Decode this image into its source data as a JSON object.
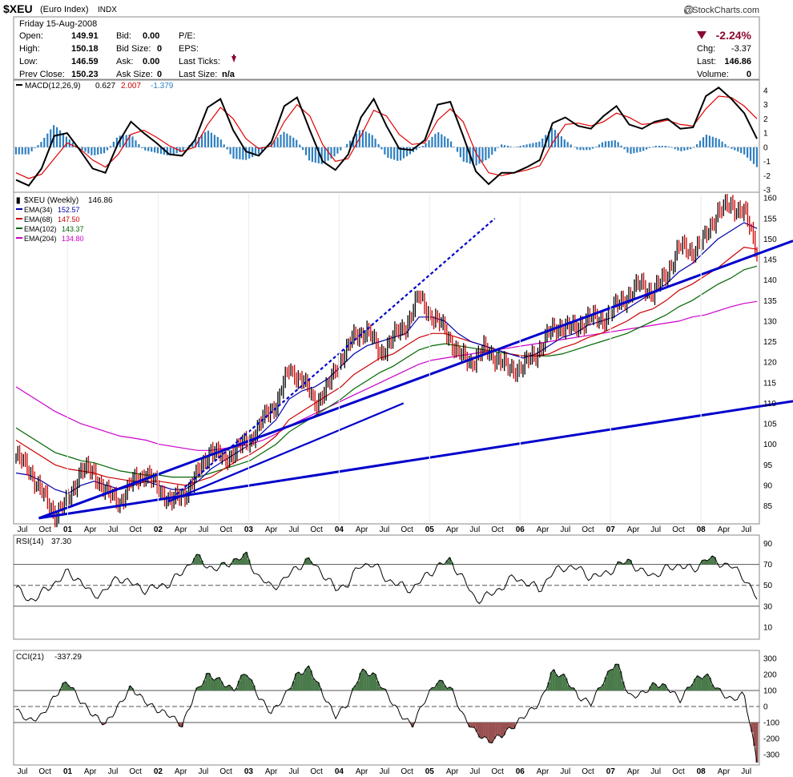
{
  "header": {
    "symbol": "$XEU",
    "name": "(Euro Index)",
    "exchange": "INDX",
    "copyright": "@StockCharts.com",
    "date": "Friday  15-Aug-2008",
    "open_label": "Open:",
    "open": "149.91",
    "high_label": "High:",
    "high": "150.18",
    "low_label": "Low:",
    "low": "146.59",
    "prev_label": "Prev Close:",
    "prev": "150.23",
    "bid_label": "Bid:",
    "bid": "0.00",
    "bidsize_label": "Bid Size:",
    "bidsize": "0",
    "ask_label": "Ask:",
    "ask": "0.00",
    "asksize_label": "Ask Size:",
    "asksize": "0",
    "pe_label": "P/E:",
    "eps_label": "EPS:",
    "lastticks_label": "Last Ticks:",
    "lastsize_label": "Last Size:",
    "lastsize": "n/a",
    "pct_change": "-2.24%",
    "chg_label": "Chg:",
    "chg": "-3.37",
    "last_label": "Last:",
    "last": "146.86",
    "volume_label": "Volume:",
    "volume": "0"
  },
  "colors": {
    "ema34": "#0000aa",
    "ema68": "#cc0000",
    "ema102": "#006600",
    "ema204": "#cc00cc",
    "trend": "#0000cc",
    "hist": "#2f7fc0",
    "up": "#000000",
    "down": "#cc0000",
    "bullFill": "#4a7a4a",
    "bearFill": "#9a5050"
  },
  "chart_data": [
    {
      "type": "line",
      "name": "MACD",
      "legend": {
        "label": "MACD(12,26,9)",
        "v1": "0.627",
        "v2": "2.007",
        "v3": "-1.379"
      },
      "ylim": [
        -3,
        4.5
      ],
      "yticks": [
        4,
        3,
        2,
        1,
        0,
        -1,
        -2,
        -3
      ],
      "series": [
        {
          "values": [
            -2.3,
            -2.7,
            -1.5,
            0.8,
            1.0,
            -0.2,
            -1.5,
            -1.8,
            0.3,
            1.8,
            1.0,
            0.3,
            -0.5,
            -0.6,
            0.5,
            2.8,
            3.4,
            1.2,
            -0.3,
            -0.6,
            0.4,
            2.9,
            3.5,
            1.2,
            -1.0,
            -1.6,
            -0.5,
            2.1,
            3.4,
            1.5,
            -0.1,
            -0.2,
            0.5,
            3.0,
            3.2,
            0.8,
            -1.7,
            -2.6,
            -1.8,
            -1.8,
            -1.4,
            -0.9,
            1.7,
            2.1,
            1.5,
            1.3,
            2.2,
            2.9,
            1.6,
            1.3,
            1.8,
            2.0,
            1.3,
            1.4,
            3.6,
            4.2,
            3.4,
            2.4,
            0.6
          ]
        },
        {
          "values": [
            -1.8,
            -2.2,
            -1.9,
            -0.8,
            0.3,
            -0.1,
            -0.9,
            -1.4,
            -0.5,
            0.9,
            1.2,
            0.7,
            0.1,
            -0.3,
            0.0,
            1.6,
            2.8,
            2.0,
            0.6,
            -0.1,
            0.1,
            1.8,
            3.0,
            2.2,
            0.2,
            -1.0,
            -0.8,
            0.8,
            2.6,
            2.2,
            0.9,
            0.2,
            0.3,
            1.9,
            2.7,
            1.8,
            -0.4,
            -1.8,
            -2.0,
            -1.8,
            -1.6,
            -1.3,
            0.3,
            1.6,
            1.7,
            1.5,
            1.8,
            2.4,
            2.1,
            1.6,
            1.7,
            1.9,
            1.6,
            1.5,
            2.7,
            3.6,
            3.5,
            2.9,
            2.0
          ]
        },
        {
          "values": [
            -0.5,
            -0.5,
            0.4,
            1.6,
            0.7,
            -0.1,
            -0.6,
            -0.4,
            0.8,
            0.9,
            -0.2,
            -0.4,
            -0.6,
            -0.3,
            0.5,
            1.2,
            0.6,
            -0.8,
            -0.9,
            -0.5,
            0.3,
            1.1,
            0.5,
            -1.0,
            -1.2,
            -0.6,
            0.3,
            1.3,
            0.8,
            -0.7,
            -1.0,
            -0.4,
            0.2,
            1.1,
            0.5,
            -1.0,
            -1.3,
            -0.8,
            0.2,
            0.0,
            0.2,
            0.4,
            1.4,
            0.5,
            -0.2,
            -0.2,
            0.4,
            0.5,
            -0.5,
            -0.3,
            0.1,
            0.1,
            -0.3,
            -0.1,
            0.9,
            0.6,
            -0.1,
            -0.5,
            -1.4
          ]
        }
      ]
    },
    {
      "type": "line",
      "name": "$XEU Weekly",
      "legend": {
        "label": "$XEU (Weekly)",
        "value": "146.86"
      },
      "ema": [
        {
          "label": "EMA(34)",
          "value": "152.57"
        },
        {
          "label": "EMA(68)",
          "value": "147.50"
        },
        {
          "label": "EMA(102)",
          "value": "143.37"
        },
        {
          "label": "EMA(204)",
          "value": "134.80"
        }
      ],
      "ylim": [
        81,
        161
      ],
      "yticks": [
        160,
        155,
        150,
        145,
        140,
        135,
        130,
        125,
        120,
        115,
        110,
        105,
        100,
        95,
        90,
        85
      ],
      "x_labels": [
        "Jul",
        "Oct",
        "01",
        "Apr",
        "Jul",
        "Oct",
        "02",
        "Apr",
        "Jul",
        "Oct",
        "03",
        "Apr",
        "Jul",
        "Oct",
        "04",
        "Apr",
        "Jul",
        "Oct",
        "05",
        "Apr",
        "Jul",
        "Oct",
        "06",
        "Apr",
        "Jul",
        "Oct",
        "07",
        "Apr",
        "Jul",
        "Oct",
        "08",
        "Apr",
        "Jul"
      ],
      "price": [
        97,
        94,
        88,
        83,
        86,
        94,
        93,
        88,
        86,
        91,
        93,
        89,
        86,
        88,
        93,
        99,
        96,
        99,
        101,
        106,
        110,
        118,
        116,
        110,
        114,
        121,
        126,
        128,
        122,
        126,
        129,
        136,
        131,
        128,
        122,
        120,
        123,
        121,
        118,
        119,
        122,
        127,
        129,
        128,
        131,
        130,
        133,
        136,
        139,
        137,
        141,
        148,
        147,
        150,
        157,
        158,
        157,
        146.86
      ],
      "ema34": [
        93,
        92.5,
        91,
        89,
        88,
        90,
        91,
        90,
        89,
        90,
        91,
        90,
        89,
        89,
        91,
        94,
        96,
        98,
        100,
        103,
        106,
        111,
        113,
        114,
        116,
        119,
        122,
        124,
        125,
        126,
        127,
        131,
        131,
        130,
        127,
        125,
        124,
        123,
        122,
        121,
        122,
        124,
        126,
        127,
        129,
        130,
        131,
        133,
        135,
        137,
        139,
        142,
        144,
        147,
        150,
        152,
        154,
        152.57
      ],
      "ema68": [
        101,
        99,
        97,
        95,
        94,
        93.5,
        93,
        92,
        91.5,
        91,
        91,
        91,
        90.5,
        90,
        91,
        92,
        94,
        96,
        97.5,
        99.5,
        102,
        106,
        108,
        110,
        112,
        114,
        117,
        119,
        121,
        122,
        124,
        126,
        127,
        127,
        126,
        125,
        124,
        123,
        122,
        121.5,
        121.5,
        122,
        123.5,
        124.5,
        126,
        127,
        128.5,
        130,
        132,
        133,
        135,
        137.5,
        139,
        141,
        143,
        145.5,
        148,
        147.5
      ],
      "ema102": [
        104,
        102,
        100,
        98,
        97,
        96,
        95.5,
        94.5,
        93.5,
        93,
        92.5,
        92.5,
        92,
        92,
        92,
        93,
        94,
        95,
        96,
        98,
        100,
        103,
        105,
        107,
        109,
        111,
        113.5,
        115.5,
        117.5,
        119,
        121,
        123,
        124,
        124.5,
        124,
        123.5,
        123,
        122.5,
        122,
        121.5,
        121.5,
        121.5,
        122,
        123,
        124,
        125,
        126,
        127,
        128.5,
        130,
        131.5,
        133.5,
        135,
        137,
        139,
        140.5,
        142.5,
        143.4
      ],
      "ema204": [
        114,
        112,
        110,
        108,
        106.5,
        105,
        104,
        103,
        102,
        101.5,
        101,
        100,
        99.5,
        99,
        98.5,
        98.5,
        99,
        99.5,
        100,
        101,
        102.5,
        104.5,
        106,
        107.5,
        109,
        110.5,
        112,
        113.5,
        115,
        116.5,
        118,
        119.5,
        120.5,
        121,
        121.5,
        122,
        122.5,
        123,
        123.5,
        124,
        124.5,
        125,
        125.5,
        126,
        126.5,
        127,
        127.5,
        128,
        128.5,
        129,
        129.5,
        130,
        131,
        131.5,
        132.5,
        133.5,
        134.3,
        134.8
      ]
    },
    {
      "type": "line",
      "name": "RSI",
      "legend": {
        "label": "RSI(14)",
        "value": "37.30"
      },
      "ylim": [
        0,
        95
      ],
      "yticks": [
        90,
        70,
        50,
        30,
        10
      ],
      "values": [
        48,
        35,
        42,
        52,
        62,
        55,
        40,
        45,
        58,
        52,
        46,
        48,
        52,
        62,
        78,
        68,
        66,
        74,
        78,
        58,
        48,
        55,
        68,
        74,
        62,
        46,
        52,
        70,
        70,
        56,
        50,
        46,
        58,
        68,
        74,
        56,
        36,
        40,
        48,
        58,
        52,
        46,
        62,
        68,
        66,
        58,
        60,
        68,
        74,
        62,
        60,
        66,
        70,
        64,
        76,
        72,
        68,
        58,
        37
      ]
    },
    {
      "type": "line",
      "name": "CCI",
      "legend": {
        "label": "CCI(21)",
        "value": "-337.29"
      },
      "ylim": [
        -350,
        350
      ],
      "yticks": [
        300,
        200,
        100,
        0,
        -100,
        -200,
        -300
      ],
      "values": [
        -20,
        -90,
        -60,
        60,
        160,
        40,
        -50,
        -110,
        0,
        120,
        40,
        -20,
        -50,
        -120,
        80,
        200,
        160,
        100,
        220,
        60,
        -40,
        60,
        200,
        240,
        80,
        -60,
        20,
        220,
        200,
        80,
        -40,
        -120,
        40,
        160,
        120,
        -60,
        -160,
        -220,
        -180,
        -120,
        -40,
        20,
        220,
        180,
        60,
        20,
        160,
        280,
        60,
        80,
        140,
        120,
        40,
        160,
        200,
        100,
        40,
        80,
        -337
      ]
    }
  ],
  "trendlines": [
    {
      "from": [
        "Oct-00",
        82
      ],
      "to": [
        "Aug-08",
        146
      ]
    },
    {
      "from": [
        "Oct-00",
        82
      ],
      "to": [
        "Aug-08",
        109
      ]
    },
    {
      "from": [
        "Mar-02",
        86
      ],
      "to": [
        "Oct-05",
        155
      ]
    },
    {
      "from": [
        "Mar-02",
        86
      ],
      "to": [
        "Oct-04",
        110
      ]
    }
  ]
}
